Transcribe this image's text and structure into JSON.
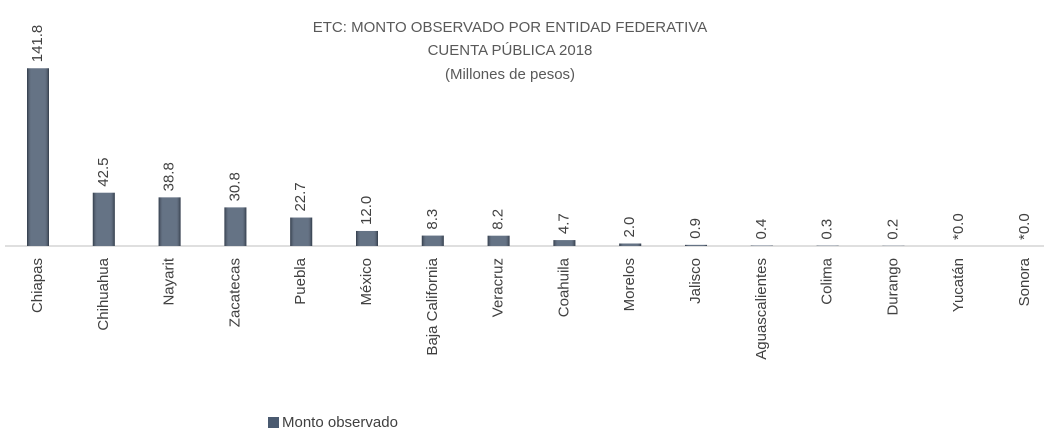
{
  "chart_data": {
    "type": "bar",
    "title": "ETC: MONTO OBSERVADO POR ENTIDAD FEDERATIVA",
    "subtitle": "CUENTA PÚBLICA 2018",
    "units": "(Millones de pesos)",
    "categories": [
      "Chiapas",
      "Chihuahua",
      "Nayarit",
      "Zacatecas",
      "Puebla",
      "México",
      "Baja California",
      "Veracruz",
      "Coahuila",
      "Morelos",
      "Jalisco",
      "Aguascalientes",
      "Colima",
      "Durango",
      "Yucatán",
      "Sonora"
    ],
    "series": [
      {
        "name": "Monto observado",
        "color": "#4a5a70",
        "values": [
          141.8,
          42.5,
          38.8,
          30.8,
          22.7,
          12.0,
          8.3,
          8.2,
          4.7,
          2.0,
          0.9,
          0.4,
          0.3,
          0.2,
          0.0,
          0.0
        ],
        "value_labels": [
          "141.8",
          "42.5",
          "38.8",
          "30.8",
          "22.7",
          "12.0",
          "8.3",
          "8.2",
          "4.7",
          "2.0",
          "0.9",
          "0.4",
          "0.3",
          "0.2",
          "*0.0",
          "*0.0"
        ]
      }
    ],
    "ylim": [
      0,
      150
    ],
    "legend": "bottom"
  }
}
